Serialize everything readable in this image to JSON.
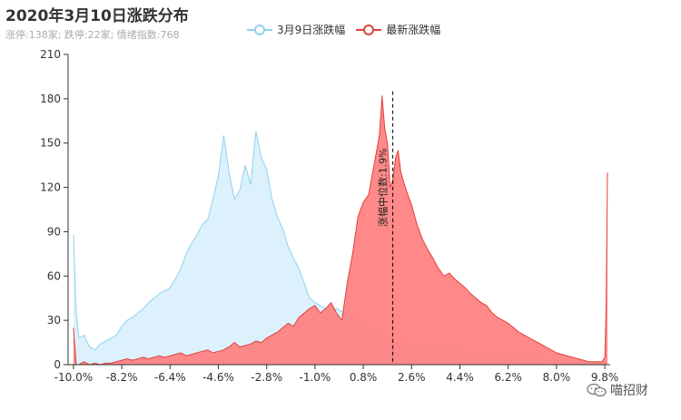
{
  "header": {
    "title": "2020年3月10日涨跌分布",
    "subtitle": "涨停:138家; 跌停:22家; 情绪指数:768"
  },
  "watermark": {
    "text": "喵招财",
    "icon": "wechat-icon"
  },
  "colors": {
    "prev_line": "#8fd2f0",
    "prev_fill": "#dcf1fb",
    "latest_line": "#e0413a",
    "latest_fill": "#ff7f7f",
    "axis": "#333333",
    "median_line": "#000000"
  },
  "chart_data": {
    "type": "area",
    "title": "2020年3月10日涨跌分布",
    "xlabel": "",
    "ylabel": "",
    "xlim": [
      -10.2,
      10.0
    ],
    "ylim": [
      0,
      210
    ],
    "y_ticks": [
      0,
      30,
      60,
      90,
      120,
      150,
      180,
      210
    ],
    "x_tick_labels": [
      "-10.0%",
      "-8.2%",
      "-6.4%",
      "-4.6%",
      "-2.8%",
      "-1.0%",
      "0.8%",
      "2.6%",
      "4.4%",
      "6.2%",
      "8.0%",
      "9.8%"
    ],
    "x_tick_values": [
      -10.0,
      -8.2,
      -6.4,
      -4.6,
      -2.8,
      -1.0,
      0.8,
      2.6,
      4.4,
      6.2,
      8.0,
      9.8
    ],
    "median": {
      "x": 1.9,
      "label": "涨幅中位数:1.9%"
    },
    "legend_position": "top-center",
    "series": [
      {
        "name": "3月9日涨跌幅",
        "x": [
          -10.0,
          -9.9,
          -9.8,
          -9.6,
          -9.4,
          -9.2,
          -9.0,
          -8.8,
          -8.6,
          -8.4,
          -8.2,
          -8.0,
          -7.8,
          -7.6,
          -7.4,
          -7.2,
          -7.0,
          -6.8,
          -6.6,
          -6.4,
          -6.2,
          -6.0,
          -5.8,
          -5.6,
          -5.4,
          -5.2,
          -5.0,
          -4.8,
          -4.6,
          -4.4,
          -4.2,
          -4.0,
          -3.8,
          -3.6,
          -3.4,
          -3.2,
          -3.0,
          -2.8,
          -2.6,
          -2.4,
          -2.2,
          -2.0,
          -1.8,
          -1.6,
          -1.4,
          -1.2,
          -1.0,
          -0.8,
          -0.6,
          -0.4,
          -0.2,
          0.0,
          0.2,
          0.4,
          0.6,
          0.8,
          1.0,
          1.2,
          1.4,
          1.6,
          1.8,
          2.0,
          2.4,
          2.8,
          3.2,
          3.6,
          4.0,
          4.4,
          4.8,
          5.2,
          5.6,
          6.0,
          6.4,
          6.8,
          7.2,
          7.6,
          8.0,
          8.4,
          8.8,
          9.2,
          9.6,
          9.8
        ],
        "values": [
          88,
          35,
          18,
          20,
          12,
          10,
          14,
          16,
          18,
          20,
          26,
          30,
          32,
          35,
          38,
          42,
          45,
          48,
          50,
          52,
          58,
          65,
          75,
          82,
          88,
          95,
          98,
          112,
          128,
          155,
          130,
          112,
          118,
          135,
          122,
          158,
          140,
          132,
          112,
          100,
          92,
          80,
          72,
          65,
          55,
          45,
          42,
          40,
          38,
          35,
          38,
          36,
          34,
          32,
          30,
          28,
          25,
          22,
          20,
          18,
          16,
          15,
          14,
          13,
          12,
          12,
          10,
          9,
          8,
          7,
          6,
          5,
          5,
          4,
          4,
          3,
          3,
          2,
          2,
          2,
          1,
          1
        ]
      },
      {
        "name": "最新涨跌幅",
        "x": [
          -10.0,
          -9.9,
          -9.8,
          -9.6,
          -9.4,
          -9.2,
          -9.0,
          -8.8,
          -8.6,
          -8.4,
          -8.2,
          -8.0,
          -7.8,
          -7.6,
          -7.4,
          -7.2,
          -7.0,
          -6.8,
          -6.6,
          -6.4,
          -6.2,
          -6.0,
          -5.8,
          -5.6,
          -5.4,
          -5.2,
          -5.0,
          -4.8,
          -4.6,
          -4.4,
          -4.2,
          -4.0,
          -3.8,
          -3.6,
          -3.4,
          -3.2,
          -3.0,
          -2.8,
          -2.6,
          -2.4,
          -2.2,
          -2.0,
          -1.8,
          -1.6,
          -1.4,
          -1.2,
          -1.0,
          -0.8,
          -0.6,
          -0.4,
          -0.2,
          0.0,
          0.2,
          0.4,
          0.6,
          0.8,
          1.0,
          1.2,
          1.4,
          1.5,
          1.6,
          1.7,
          1.8,
          1.9,
          2.0,
          2.1,
          2.2,
          2.4,
          2.6,
          2.8,
          3.0,
          3.2,
          3.4,
          3.6,
          3.8,
          4.0,
          4.2,
          4.4,
          4.6,
          4.8,
          5.0,
          5.2,
          5.4,
          5.6,
          5.8,
          6.0,
          6.2,
          6.4,
          6.6,
          6.8,
          7.0,
          7.2,
          7.4,
          7.6,
          7.8,
          8.0,
          8.2,
          8.4,
          8.6,
          8.8,
          9.0,
          9.2,
          9.4,
          9.6,
          9.7,
          9.8,
          9.85,
          9.9
        ],
        "values": [
          25,
          0,
          0,
          2,
          0,
          1,
          0,
          1,
          1,
          2,
          3,
          4,
          3,
          4,
          5,
          4,
          5,
          6,
          5,
          6,
          7,
          8,
          6,
          7,
          8,
          9,
          10,
          8,
          9,
          10,
          12,
          15,
          12,
          13,
          14,
          16,
          15,
          18,
          20,
          22,
          25,
          28,
          26,
          32,
          35,
          38,
          40,
          35,
          38,
          42,
          35,
          30,
          55,
          75,
          100,
          110,
          115,
          135,
          155,
          182,
          160,
          150,
          120,
          125,
          140,
          145,
          130,
          118,
          108,
          95,
          85,
          78,
          72,
          65,
          60,
          62,
          58,
          55,
          52,
          48,
          45,
          42,
          40,
          35,
          32,
          30,
          28,
          25,
          22,
          20,
          18,
          16,
          14,
          12,
          10,
          8,
          7,
          6,
          5,
          4,
          3,
          2,
          2,
          2,
          2,
          5,
          40,
          130
        ]
      }
    ]
  }
}
